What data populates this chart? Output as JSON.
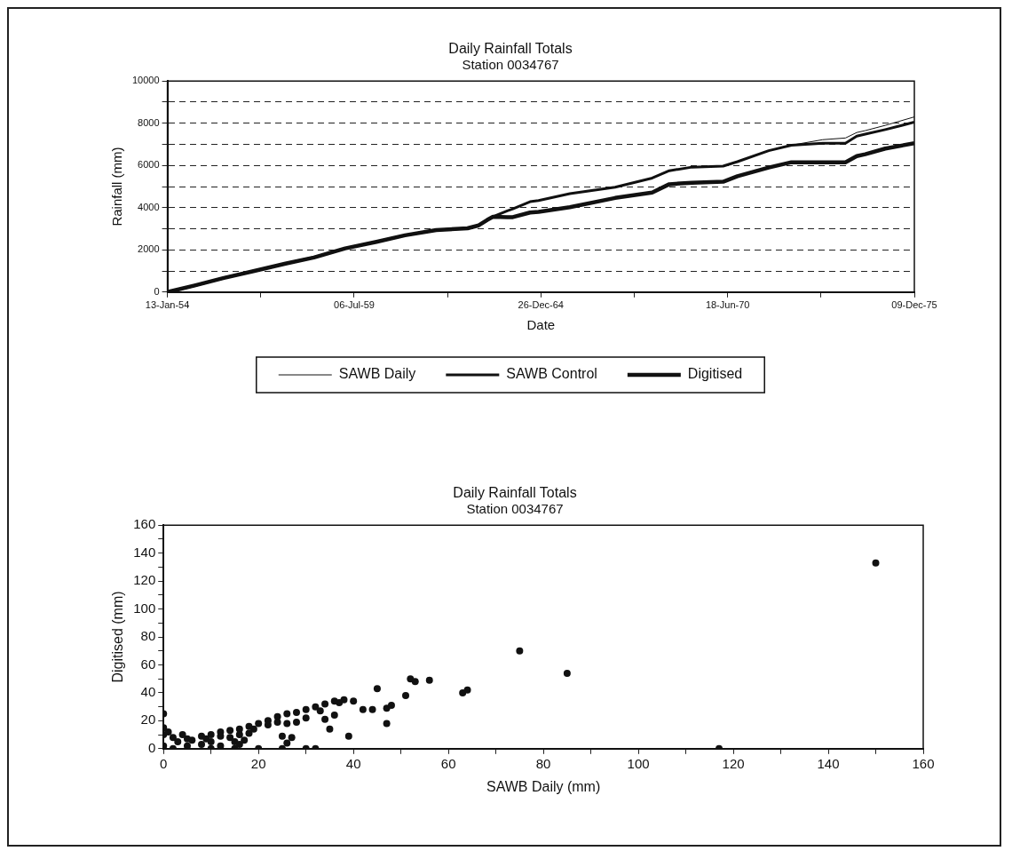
{
  "chart_data": [
    {
      "type": "line",
      "title": "Daily Rainfall Totals",
      "subtitle": "Station 0034767",
      "xlabel": "Date",
      "ylabel": "Rainfall (mm)",
      "x": [
        "1954-01-13",
        "1954-11",
        "1955-09",
        "1956-08",
        "1957-07",
        "1958-05",
        "1959-04",
        "1960-03",
        "1961-01",
        "1961-12",
        "1962-11",
        "1963-03",
        "1963-06",
        "1963-08",
        "1964-01",
        "1964-03",
        "1964-09",
        "1964-12",
        "1965-11",
        "1967-03",
        "1968-04",
        "1968-10",
        "1969-06",
        "1970-05",
        "1970-10",
        "1971-09",
        "1972-05",
        "1973-04",
        "1973-12",
        "1974-04",
        "1974-07",
        "1975-02",
        "1975-12-09"
      ],
      "series": [
        {
          "name": "SAWB Daily",
          "color": "#111111",
          "values": [
            0,
            310,
            660,
            1000,
            1350,
            1640,
            2070,
            2380,
            2690,
            2940,
            3020,
            3160,
            3420,
            3570,
            3850,
            3940,
            4280,
            4340,
            4660,
            4970,
            5400,
            5750,
            5920,
            5970,
            6180,
            6700,
            6960,
            7220,
            7300,
            7560,
            7650,
            7900,
            8300
          ]
        },
        {
          "name": "SAWB Control",
          "color": "#111111",
          "values": [
            0,
            310,
            660,
            1000,
            1350,
            1640,
            2070,
            2380,
            2690,
            2940,
            3020,
            3160,
            3420,
            3570,
            3850,
            3940,
            4280,
            4340,
            4660,
            4970,
            5400,
            5750,
            5920,
            5970,
            6180,
            6700,
            6960,
            7050,
            7050,
            7390,
            7480,
            7700,
            8050
          ]
        },
        {
          "name": "Digitised",
          "color": "#111111",
          "values": [
            0,
            310,
            660,
            1000,
            1350,
            1640,
            2070,
            2380,
            2690,
            2940,
            3020,
            3160,
            3420,
            3570,
            3550,
            3550,
            3770,
            3800,
            4020,
            4460,
            4720,
            5110,
            5180,
            5230,
            5490,
            5900,
            6150,
            6150,
            6150,
            6440,
            6530,
            6800,
            7050
          ]
        }
      ],
      "xlim": [
        "1954-01-13",
        "1975-12-09"
      ],
      "xticks": [
        {
          "value": "1954-01-13",
          "label": "13-Jan-54"
        },
        {
          "value": "1956-10-09",
          "label": null
        },
        {
          "value": "1959-07-06",
          "label": "06-Jul-59"
        },
        {
          "value": "1962-04-01",
          "label": null
        },
        {
          "value": "1964-12-26",
          "label": "26-Dec-64"
        },
        {
          "value": "1967-09-22",
          "label": null
        },
        {
          "value": "1970-06-18",
          "label": "18-Jun-70"
        },
        {
          "value": "1973-03-14",
          "label": null
        },
        {
          "value": "1975-12-09",
          "label": "09-Dec-75"
        }
      ],
      "ylim": [
        0,
        10000
      ],
      "yticks": [
        0,
        {
          "value": 1000,
          "label": null
        },
        2000,
        {
          "value": 3000,
          "label": null
        },
        4000,
        {
          "value": 5000,
          "label": null
        },
        6000,
        {
          "value": 7000,
          "label": null
        },
        8000,
        {
          "value": 9000,
          "label": null
        },
        10000
      ],
      "grid": "y",
      "legend": "bottom",
      "marker": "none"
    },
    {
      "type": "scatter",
      "title": "Daily Rainfall Totals",
      "subtitle": "Station 0034767",
      "xlabel": "SAWB Daily (mm)",
      "ylabel": "Digitised (mm)",
      "series": [
        {
          "color": "#111111",
          "x": [
            150,
            117,
            75,
            85,
            63,
            64,
            52,
            53,
            56,
            51,
            45,
            47,
            48,
            47,
            44,
            42,
            39,
            35,
            36,
            34,
            30,
            32,
            25,
            27,
            26,
            26,
            28,
            40,
            38,
            37,
            5,
            8,
            10,
            12,
            14,
            16,
            18,
            20,
            22,
            24,
            26,
            28,
            30,
            32,
            34,
            36,
            0,
            0,
            0,
            1,
            2,
            3,
            5,
            8,
            10,
            12,
            14,
            15,
            16,
            17,
            18,
            20,
            10,
            15,
            25,
            2,
            0,
            4,
            6,
            9,
            12,
            16,
            19,
            22,
            24,
            30,
            33
          ],
          "values": [
            133,
            0,
            70,
            54,
            40,
            42,
            50,
            48,
            49,
            38,
            43,
            29,
            31,
            18,
            28,
            28,
            9,
            14,
            24,
            21,
            0,
            0,
            9,
            8,
            4,
            18,
            19,
            34,
            35,
            33,
            7,
            9,
            10,
            12,
            13,
            14,
            16,
            18,
            20,
            23,
            25,
            26,
            28,
            30,
            32,
            34,
            25,
            15,
            10,
            12,
            8,
            5,
            2,
            3,
            5,
            2,
            8,
            5,
            10,
            6,
            11,
            0,
            0,
            0,
            0,
            0,
            2,
            10,
            6,
            7,
            9,
            3,
            14,
            17,
            19,
            22,
            27
          ]
        }
      ],
      "xlim": [
        0,
        160
      ],
      "xticks": [
        0,
        {
          "value": 10,
          "label": null
        },
        20,
        {
          "value": 30,
          "label": null
        },
        40,
        {
          "value": 50,
          "label": null
        },
        60,
        {
          "value": 70,
          "label": null
        },
        80,
        {
          "value": 90,
          "label": null
        },
        100,
        {
          "value": 110,
          "label": null
        },
        120,
        {
          "value": 130,
          "label": null
        },
        140,
        {
          "value": 150,
          "label": null
        },
        160
      ],
      "ylim": [
        0,
        160
      ],
      "yticks": [
        0,
        {
          "value": 10,
          "label": null
        },
        20,
        {
          "value": 30,
          "label": null
        },
        40,
        {
          "value": 50,
          "label": null
        },
        60,
        {
          "value": 70,
          "label": null
        },
        80,
        {
          "value": 90,
          "label": null
        },
        100,
        {
          "value": 110,
          "label": null
        },
        120,
        {
          "value": 130,
          "label": null
        },
        140,
        {
          "value": 150,
          "label": null
        },
        160
      ],
      "grid": false,
      "legend": false,
      "marker": "circle"
    }
  ]
}
